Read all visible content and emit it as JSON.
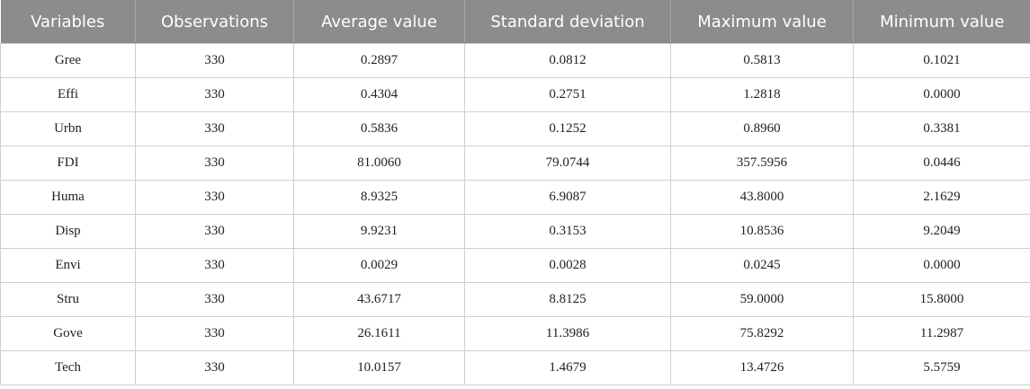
{
  "table": {
    "headers": [
      "Variables",
      "Observations",
      "Average value",
      "Standard deviation",
      "Maximum value",
      "Minimum value"
    ],
    "rows": [
      [
        "Gree",
        "330",
        "0.2897",
        "0.0812",
        "0.5813",
        "0.1021"
      ],
      [
        "Effi",
        "330",
        "0.4304",
        "0.2751",
        "1.2818",
        "0.0000"
      ],
      [
        "Urbn",
        "330",
        "0.5836",
        "0.1252",
        "0.8960",
        "0.3381"
      ],
      [
        "FDI",
        "330",
        "81.0060",
        "79.0744",
        "357.5956",
        "0.0446"
      ],
      [
        "Huma",
        "330",
        "8.9325",
        "6.9087",
        "43.8000",
        "2.1629"
      ],
      [
        "Disp",
        "330",
        "9.9231",
        "0.3153",
        "10.8536",
        "9.2049"
      ],
      [
        "Envi",
        "330",
        "0.0029",
        "0.0028",
        "0.0245",
        "0.0000"
      ],
      [
        "Stru",
        "330",
        "43.6717",
        "8.8125",
        "59.0000",
        "15.8000"
      ],
      [
        "Gove",
        "330",
        "26.1611",
        "11.3986",
        "75.8292",
        "11.2987"
      ],
      [
        "Tech",
        "330",
        "10.0157",
        "1.4679",
        "13.4726",
        "5.5759"
      ]
    ]
  }
}
